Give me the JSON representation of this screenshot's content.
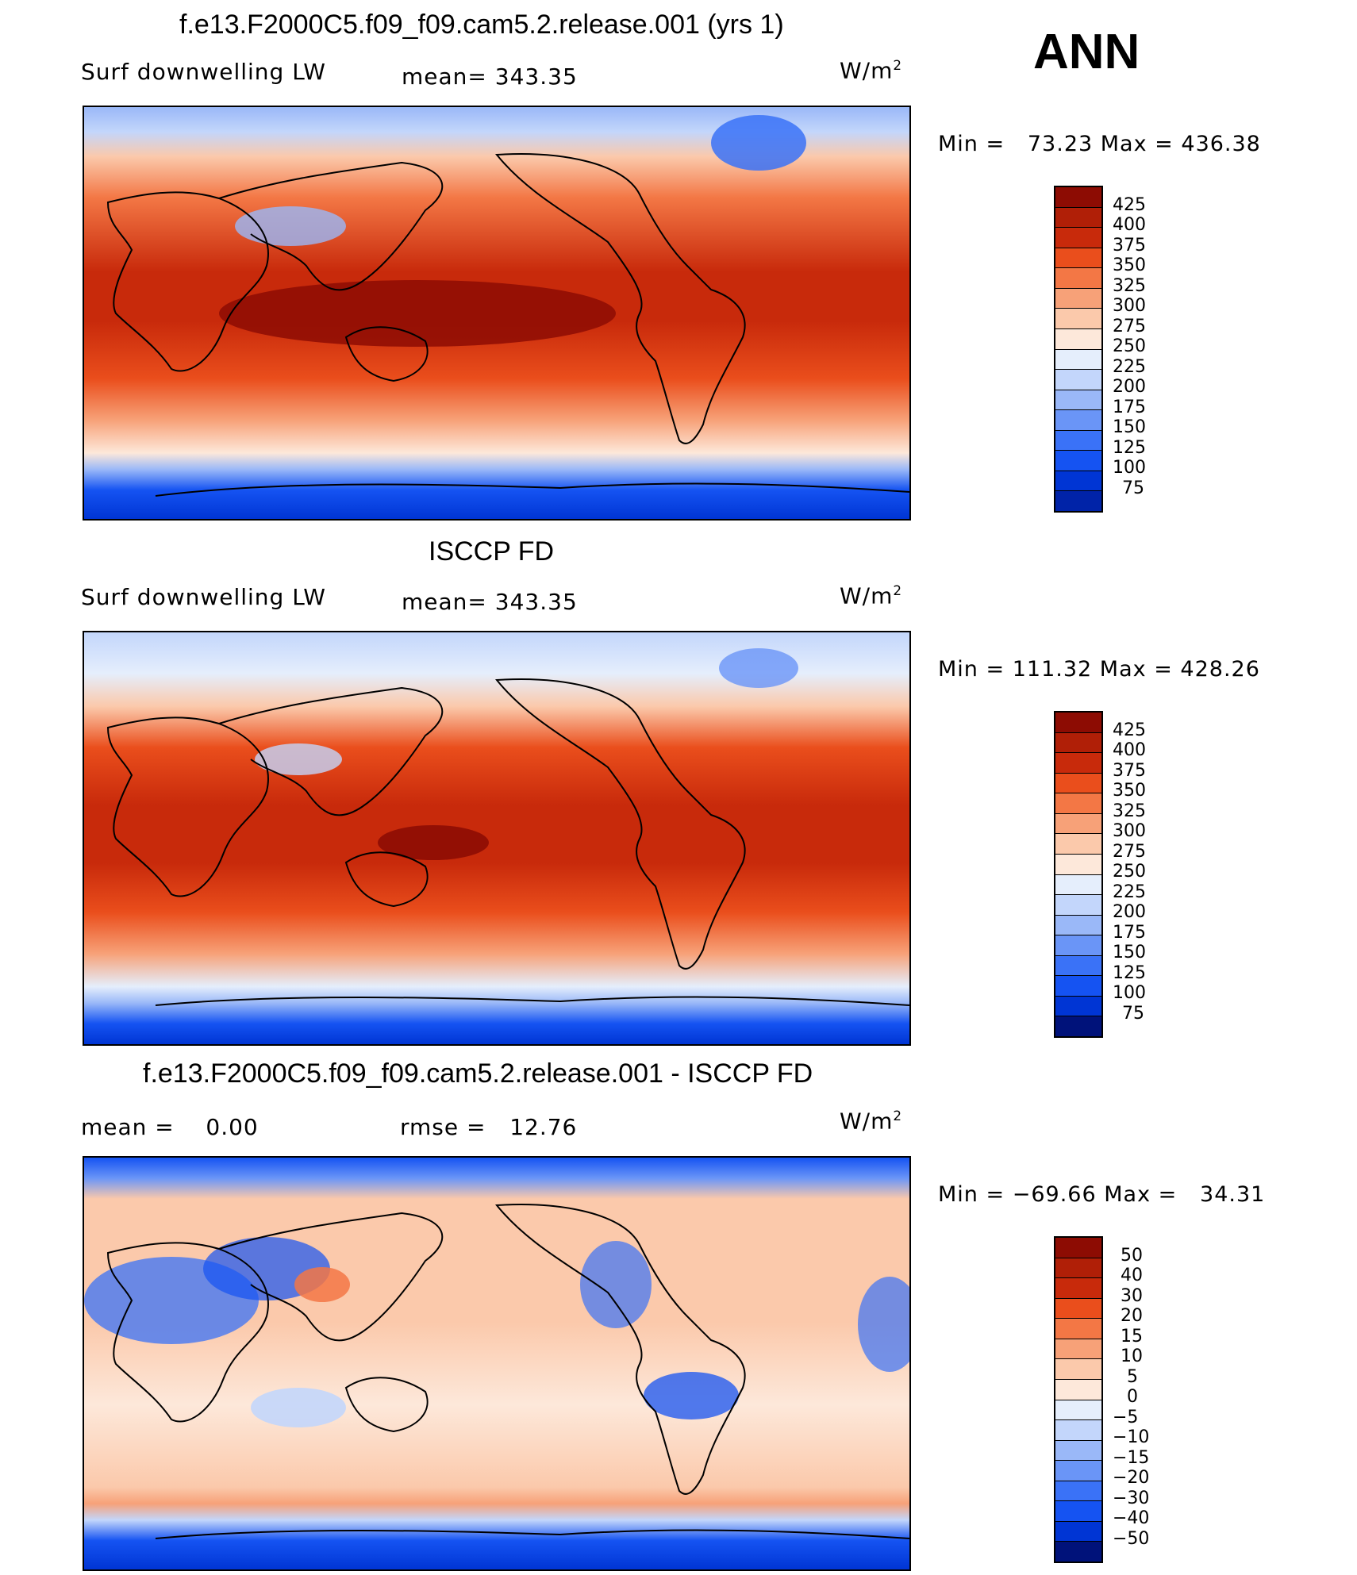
{
  "season": "ANN",
  "colors": {
    "scale16": [
      "#ffffff",
      "#00127a",
      "#0023a8",
      "#0035d4",
      "#1553f2",
      "#3a72f7",
      "#6a95f7",
      "#9ab8f8",
      "#c3d6fb",
      "#e5eefc",
      "#fde8da",
      "#fbc9ab",
      "#f7a178",
      "#f37745",
      "#ea4e1c",
      "#c82a0b",
      "#8d0c03"
    ],
    "land": "#000000"
  },
  "panels": [
    {
      "title": "f.e13.F2000C5.f09_f09.cam5.2.release.001 (yrs 1)",
      "left_label": "Surf downwelling LW",
      "mean_label": "mean=",
      "mean_value": "343.35",
      "units": "W/m",
      "units_exp": "2",
      "min_label": "Min =",
      "min_value": "73.23",
      "max_label": "Max =",
      "max_value": "436.38",
      "colorbar_labels": [
        "425",
        "400",
        "375",
        "350",
        "325",
        "300",
        "275",
        "250",
        "225",
        "200",
        "175",
        "150",
        "125",
        "100",
        "75"
      ]
    },
    {
      "title": "ISCCP FD",
      "left_label": "Surf downwelling LW",
      "mean_label": "mean=",
      "mean_value": "343.35",
      "units": "W/m",
      "units_exp": "2",
      "min_label": "Min =",
      "min_value": "111.32",
      "max_label": "Max =",
      "max_value": "428.26",
      "colorbar_labels": [
        "425",
        "400",
        "375",
        "350",
        "325",
        "300",
        "275",
        "250",
        "225",
        "200",
        "175",
        "150",
        "125",
        "100",
        "75"
      ]
    },
    {
      "title": "f.e13.F2000C5.f09_f09.cam5.2.release.001 - ISCCP FD",
      "mean_label": "mean =",
      "mean_value": "0.00",
      "rmse_label": "rmse =",
      "rmse_value": "12.76",
      "units": "W/m",
      "units_exp": "2",
      "min_label": "Min =",
      "min_value": "−69.66",
      "max_label": "Max =",
      "max_value": "34.31",
      "colorbar_labels": [
        "50",
        "40",
        "30",
        "20",
        "15",
        "10",
        "5",
        "0",
        "−5",
        "−10",
        "−15",
        "−20",
        "−30",
        "−40",
        "−50"
      ]
    }
  ]
}
